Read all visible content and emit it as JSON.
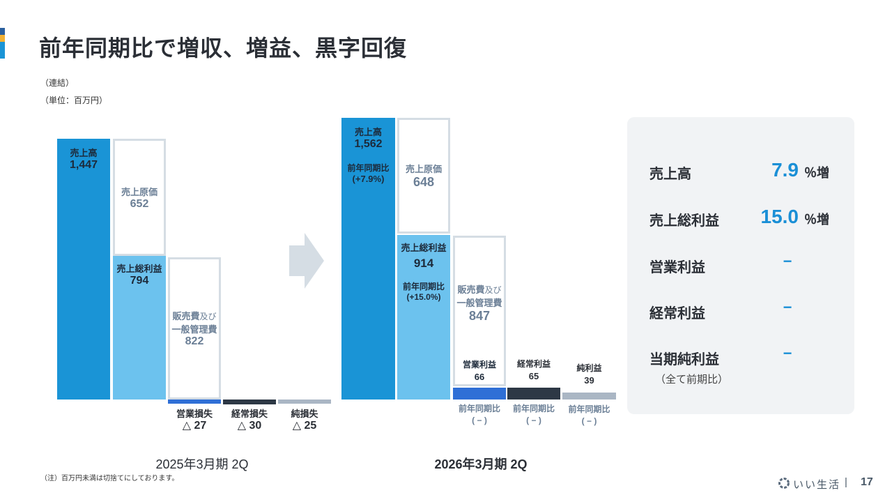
{
  "title": "前年同期比で増収、増益、黒字回復",
  "notes": {
    "consolidated": "（連結）",
    "unit": "（単位：百万円）",
    "footnote": "（注）百万円未満は切捨てにしております。"
  },
  "colors": {
    "sales": "#1a94d6",
    "gross": "#6cc2ee",
    "op": "#2f6fd6",
    "ordinary": "#2d3845",
    "net": "#aab6c4",
    "outline": "#d5dde4"
  },
  "left": {
    "period": "2025年3月期 2Q",
    "sales": {
      "label": "売上高",
      "value": "1,447"
    },
    "cost": {
      "label": "売上原価",
      "value": "652"
    },
    "gross": {
      "label": "売上総利益",
      "value": "794"
    },
    "sga": {
      "label1": "販売費",
      "label_small": "及び",
      "label2": "一般管理費",
      "value": "822"
    },
    "op": {
      "label": "営業損失",
      "value": "△ 27"
    },
    "ordinary": {
      "label": "経常損失",
      "value": "△ 30"
    },
    "net": {
      "label": "純損失",
      "value": "△ 25"
    }
  },
  "right": {
    "period": "2026年3月期 2Q",
    "sales": {
      "label": "売上高",
      "value": "1,562",
      "yoy_label": "前年同期比",
      "yoy": "(+7.9%)"
    },
    "cost": {
      "label": "売上原価",
      "value": "648"
    },
    "gross": {
      "label": "売上総利益",
      "value": "914",
      "yoy_label": "前年同期比",
      "yoy": "(+15.0%)"
    },
    "sga": {
      "label1": "販売費",
      "label_small": "及び",
      "label2": "一般管理費",
      "value": "847"
    },
    "op": {
      "label": "営業利益",
      "value": "66",
      "yoy_label": "前年同期比",
      "yoy": "( − )"
    },
    "ordinary": {
      "label": "経常利益",
      "value": "65",
      "yoy_label": "前年同期比",
      "yoy": "( − )"
    },
    "net": {
      "label": "純利益",
      "value": "39",
      "yoy_label": "前年同期比",
      "yoy": "( − )"
    }
  },
  "panel": {
    "rows": [
      {
        "label": "売上高",
        "value": "7.9",
        "unit": "％増"
      },
      {
        "label": "売上総利益",
        "value": "15.0",
        "unit": "％増"
      },
      {
        "label": "営業利益",
        "value": "−"
      },
      {
        "label": "経常利益",
        "value": "−"
      },
      {
        "label": "当期純利益",
        "value": "−"
      }
    ],
    "note": "（全て前期比）"
  },
  "footer": {
    "brand": "いい生活",
    "separator": "|",
    "page": "17"
  },
  "chart_data": {
    "type": "bar",
    "subtype": "waterfall",
    "unit": "百万円",
    "categories": [
      "売上高",
      "売上原価",
      "売上総利益",
      "販売費及び一般管理費",
      "営業利益",
      "経常利益",
      "純利益"
    ],
    "series": [
      {
        "name": "2025年3月期 2Q",
        "values": [
          1447,
          652,
          794,
          822,
          -27,
          -30,
          -25
        ]
      },
      {
        "name": "2026年3月期 2Q",
        "values": [
          1562,
          648,
          914,
          847,
          66,
          65,
          39
        ]
      }
    ]
  }
}
